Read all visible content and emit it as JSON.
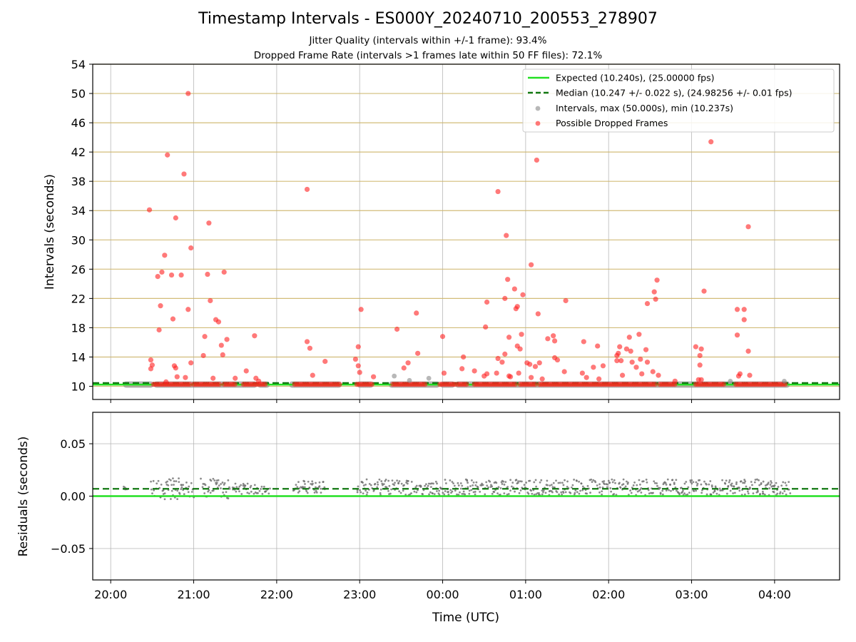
{
  "chart_data": [
    {
      "type": "scatter",
      "title": "Timestamp Intervals - ES000Y_20240710_200553_278907",
      "subtitle_lines": [
        "Jitter Quality (intervals within +/-1 frame): 93.4%",
        "Dropped Frame Rate (intervals >1 frames late within 50 FF files): 72.1%"
      ],
      "xlabel": "",
      "ylabel": "Intervals (seconds)",
      "xlim": [
        "19:47",
        "04:47"
      ],
      "ylim": [
        8.2,
        54
      ],
      "yticks": [
        "10",
        "14",
        "18",
        "22",
        "26",
        "30",
        "34",
        "38",
        "42",
        "46",
        "50",
        "54"
      ],
      "xticks": [
        "20:00",
        "21:00",
        "22:00",
        "23:00",
        "00:00",
        "01:00",
        "02:00",
        "03:00",
        "04:00"
      ],
      "grid": true,
      "horizontal_lines": [
        10,
        14,
        18,
        22,
        26,
        30,
        34,
        38,
        42,
        46,
        50,
        54
      ],
      "legend": {
        "placement": "top-right",
        "entries": [
          {
            "label": "Expected (10.240s), (25.00000 fps)",
            "style": "solid-line",
            "color": "#22e022"
          },
          {
            "label": "Median (10.247 +/- 0.022 s), (24.98256 +/- 0.01 fps)",
            "style": "dashed-line",
            "color": "#117711"
          },
          {
            "label": "Intervals, max (50.000s), min (10.237s)",
            "style": "marker",
            "color": "#888888"
          },
          {
            "label": "Possible Dropped Frames",
            "style": "marker",
            "color": "#ff2020"
          }
        ]
      },
      "expected_value": 10.24,
      "median_value": 10.247,
      "interval_segments": [
        [
          "20:09",
          "20:31"
        ],
        [
          "20:31",
          "21:46"
        ],
        [
          "21:46",
          "21:55"
        ],
        [
          "22:09",
          "22:47"
        ],
        [
          "22:58",
          "23:10"
        ],
        [
          "23:21",
          "23:58"
        ],
        [
          "23:58",
          "00:09"
        ],
        [
          "00:09",
          "04:11"
        ]
      ],
      "interval_points": [
        {
          "x": "23:25",
          "y": 11.4
        },
        {
          "x": "23:50",
          "y": 11.1
        },
        {
          "x": "23:36",
          "y": 10.8
        },
        {
          "x": "03:28",
          "y": 10.7
        },
        {
          "x": "04:07",
          "y": 10.7
        }
      ],
      "dropped_frames": [
        {
          "x": "20:28",
          "y": 34.1
        },
        {
          "x": "20:29",
          "y": 12.4
        },
        {
          "x": "20:29",
          "y": 13.6
        },
        {
          "x": "20:30",
          "y": 12.9
        },
        {
          "x": "20:34",
          "y": 25.0
        },
        {
          "x": "20:35",
          "y": 17.7
        },
        {
          "x": "20:36",
          "y": 21.0
        },
        {
          "x": "20:37",
          "y": 25.6
        },
        {
          "x": "20:39",
          "y": 27.9
        },
        {
          "x": "20:40",
          "y": 10.6
        },
        {
          "x": "20:41",
          "y": 41.6
        },
        {
          "x": "20:44",
          "y": 25.2
        },
        {
          "x": "20:45",
          "y": 19.2
        },
        {
          "x": "20:46",
          "y": 12.8
        },
        {
          "x": "20:47",
          "y": 12.5
        },
        {
          "x": "20:47",
          "y": 33.0
        },
        {
          "x": "20:48",
          "y": 11.3
        },
        {
          "x": "20:51",
          "y": 25.2
        },
        {
          "x": "20:53",
          "y": 39.0
        },
        {
          "x": "20:54",
          "y": 11.2
        },
        {
          "x": "20:56",
          "y": 50.0
        },
        {
          "x": "20:56",
          "y": 20.5
        },
        {
          "x": "20:58",
          "y": 28.9
        },
        {
          "x": "20:58",
          "y": 13.2
        },
        {
          "x": "21:07",
          "y": 14.2
        },
        {
          "x": "21:08",
          "y": 16.8
        },
        {
          "x": "21:10",
          "y": 25.3
        },
        {
          "x": "21:11",
          "y": 32.3
        },
        {
          "x": "21:12",
          "y": 21.7
        },
        {
          "x": "21:14",
          "y": 11.1
        },
        {
          "x": "21:16",
          "y": 19.1
        },
        {
          "x": "21:18",
          "y": 18.8
        },
        {
          "x": "21:20",
          "y": 15.6
        },
        {
          "x": "21:21",
          "y": 14.3
        },
        {
          "x": "21:22",
          "y": 25.6
        },
        {
          "x": "21:24",
          "y": 16.4
        },
        {
          "x": "21:30",
          "y": 11.1
        },
        {
          "x": "21:38",
          "y": 12.1
        },
        {
          "x": "21:44",
          "y": 16.9
        },
        {
          "x": "21:45",
          "y": 11.1
        },
        {
          "x": "21:47",
          "y": 10.7
        },
        {
          "x": "22:22",
          "y": 36.9
        },
        {
          "x": "22:22",
          "y": 16.1
        },
        {
          "x": "22:24",
          "y": 15.2
        },
        {
          "x": "22:26",
          "y": 11.5
        },
        {
          "x": "22:35",
          "y": 13.4
        },
        {
          "x": "22:57",
          "y": 13.7
        },
        {
          "x": "22:59",
          "y": 15.4
        },
        {
          "x": "22:59",
          "y": 12.8
        },
        {
          "x": "23:00",
          "y": 11.9
        },
        {
          "x": "23:01",
          "y": 20.5
        },
        {
          "x": "23:10",
          "y": 11.3
        },
        {
          "x": "23:27",
          "y": 17.8
        },
        {
          "x": "23:32",
          "y": 12.5
        },
        {
          "x": "23:35",
          "y": 13.2
        },
        {
          "x": "23:41",
          "y": 20.0
        },
        {
          "x": "23:42",
          "y": 14.5
        },
        {
          "x": "00:00",
          "y": 16.8
        },
        {
          "x": "00:01",
          "y": 11.8
        },
        {
          "x": "00:14",
          "y": 12.4
        },
        {
          "x": "00:15",
          "y": 14.0
        },
        {
          "x": "00:23",
          "y": 12.1
        },
        {
          "x": "00:30",
          "y": 11.4
        },
        {
          "x": "00:31",
          "y": 18.1
        },
        {
          "x": "00:32",
          "y": 21.5
        },
        {
          "x": "00:32",
          "y": 11.7
        },
        {
          "x": "00:39",
          "y": 11.8
        },
        {
          "x": "00:40",
          "y": 36.6
        },
        {
          "x": "00:40",
          "y": 13.8
        },
        {
          "x": "00:43",
          "y": 13.3
        },
        {
          "x": "00:45",
          "y": 22.0
        },
        {
          "x": "00:45",
          "y": 14.4
        },
        {
          "x": "00:46",
          "y": 30.6
        },
        {
          "x": "00:47",
          "y": 24.6
        },
        {
          "x": "00:48",
          "y": 11.4
        },
        {
          "x": "00:48",
          "y": 16.7
        },
        {
          "x": "00:49",
          "y": 11.3
        },
        {
          "x": "00:52",
          "y": 23.3
        },
        {
          "x": "00:53",
          "y": 20.6
        },
        {
          "x": "00:54",
          "y": 20.9
        },
        {
          "x": "00:54",
          "y": 15.5
        },
        {
          "x": "00:55",
          "y": 11.8
        },
        {
          "x": "00:56",
          "y": 15.1
        },
        {
          "x": "00:57",
          "y": 17.1
        },
        {
          "x": "00:58",
          "y": 22.5
        },
        {
          "x": "01:01",
          "y": 13.2
        },
        {
          "x": "01:03",
          "y": 13.0
        },
        {
          "x": "01:04",
          "y": 26.6
        },
        {
          "x": "01:04",
          "y": 11.2
        },
        {
          "x": "01:07",
          "y": 12.7
        },
        {
          "x": "01:08",
          "y": 40.9
        },
        {
          "x": "01:09",
          "y": 19.9
        },
        {
          "x": "01:10",
          "y": 13.2
        },
        {
          "x": "01:12",
          "y": 11.0
        },
        {
          "x": "01:16",
          "y": 16.5
        },
        {
          "x": "01:20",
          "y": 16.9
        },
        {
          "x": "01:21",
          "y": 16.2
        },
        {
          "x": "01:21",
          "y": 13.9
        },
        {
          "x": "01:23",
          "y": 13.6
        },
        {
          "x": "01:28",
          "y": 12.0
        },
        {
          "x": "01:29",
          "y": 21.7
        },
        {
          "x": "01:41",
          "y": 11.8
        },
        {
          "x": "01:42",
          "y": 16.1
        },
        {
          "x": "01:44",
          "y": 11.2
        },
        {
          "x": "01:49",
          "y": 12.6
        },
        {
          "x": "01:52",
          "y": 15.5
        },
        {
          "x": "01:53",
          "y": 11.0
        },
        {
          "x": "01:56",
          "y": 12.8
        },
        {
          "x": "02:06",
          "y": 13.5
        },
        {
          "x": "02:06",
          "y": 14.2
        },
        {
          "x": "02:07",
          "y": 14.5
        },
        {
          "x": "02:08",
          "y": 15.4
        },
        {
          "x": "02:09",
          "y": 13.5
        },
        {
          "x": "02:10",
          "y": 11.5
        },
        {
          "x": "02:13",
          "y": 15.1
        },
        {
          "x": "02:15",
          "y": 16.7
        },
        {
          "x": "02:16",
          "y": 14.8
        },
        {
          "x": "02:17",
          "y": 13.3
        },
        {
          "x": "02:20",
          "y": 12.6
        },
        {
          "x": "02:22",
          "y": 17.1
        },
        {
          "x": "02:23",
          "y": 13.7
        },
        {
          "x": "02:24",
          "y": 11.7
        },
        {
          "x": "02:27",
          "y": 15.0
        },
        {
          "x": "02:28",
          "y": 13.3
        },
        {
          "x": "02:28",
          "y": 21.3
        },
        {
          "x": "02:32",
          "y": 12.0
        },
        {
          "x": "02:33",
          "y": 22.9
        },
        {
          "x": "02:34",
          "y": 21.9
        },
        {
          "x": "02:35",
          "y": 24.5
        },
        {
          "x": "02:36",
          "y": 11.5
        },
        {
          "x": "02:48",
          "y": 10.7
        },
        {
          "x": "03:03",
          "y": 15.4
        },
        {
          "x": "03:05",
          "y": 10.9
        },
        {
          "x": "03:06",
          "y": 14.2
        },
        {
          "x": "03:06",
          "y": 12.9
        },
        {
          "x": "03:07",
          "y": 15.1
        },
        {
          "x": "03:07",
          "y": 10.9
        },
        {
          "x": "03:09",
          "y": 23.0
        },
        {
          "x": "03:14",
          "y": 43.4
        },
        {
          "x": "03:33",
          "y": 20.5
        },
        {
          "x": "03:33",
          "y": 17.0
        },
        {
          "x": "03:34",
          "y": 11.4
        },
        {
          "x": "03:35",
          "y": 11.7
        },
        {
          "x": "03:38",
          "y": 20.5
        },
        {
          "x": "03:38",
          "y": 19.1
        },
        {
          "x": "03:41",
          "y": 14.8
        },
        {
          "x": "03:41",
          "y": 31.8
        },
        {
          "x": "03:42",
          "y": 11.5
        }
      ],
      "dropped_baseline_segments": [
        [
          "20:31",
          "20:58"
        ],
        [
          "21:00",
          "21:20"
        ],
        [
          "21:22",
          "21:30"
        ],
        [
          "21:36",
          "21:46"
        ],
        [
          "21:47",
          "21:52"
        ],
        [
          "22:13",
          "22:47"
        ],
        [
          "22:58",
          "23:10"
        ],
        [
          "23:24",
          "23:48"
        ],
        [
          "23:58",
          "00:09"
        ],
        [
          "00:11",
          "00:18"
        ],
        [
          "00:23",
          "00:53"
        ],
        [
          "00:56",
          "01:08"
        ],
        [
          "01:10",
          "02:35"
        ],
        [
          "02:37",
          "02:49"
        ],
        [
          "03:03",
          "03:24"
        ],
        [
          "03:32",
          "04:08"
        ]
      ]
    },
    {
      "type": "scatter",
      "title": "",
      "xlabel": "Time (UTC)",
      "ylabel": "Residuals (seconds)",
      "xlim": [
        "19:47",
        "04:47"
      ],
      "ylim": [
        -0.08,
        0.08
      ],
      "yticks": [
        "0.05",
        "0.00",
        "−0.05"
      ],
      "xticks": [
        "20:00",
        "21:00",
        "22:00",
        "23:00",
        "00:00",
        "01:00",
        "02:00",
        "03:00",
        "04:00"
      ],
      "grid": true,
      "expected_residual": 0.0,
      "median_residual": 0.007,
      "residual_segments": [
        {
          "start": "20:09",
          "end": "20:12",
          "low": 0.006,
          "high": 0.009
        },
        {
          "start": "20:29",
          "end": "21:00",
          "low": -0.003,
          "high": 0.017
        },
        {
          "start": "21:05",
          "end": "21:26",
          "low": -0.003,
          "high": 0.017
        },
        {
          "start": "21:28",
          "end": "21:42",
          "low": 0.002,
          "high": 0.012
        },
        {
          "start": "21:43",
          "end": "21:55",
          "low": 0.002,
          "high": 0.012
        },
        {
          "start": "22:12",
          "end": "22:35",
          "low": 0.003,
          "high": 0.015
        },
        {
          "start": "22:58",
          "end": "04:11",
          "low": 0.001,
          "high": 0.016
        }
      ]
    }
  ]
}
